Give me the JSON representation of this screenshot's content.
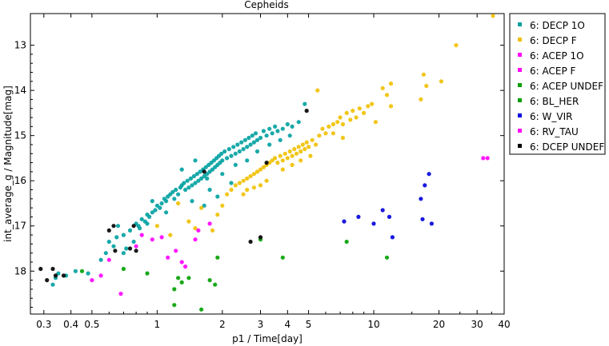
{
  "chart_data": {
    "type": "scatter",
    "title": "Cepheids",
    "xlabel": "p1 / Time[day]",
    "ylabel": "int_average_g / Magnitude[mag]",
    "x_scale": "log",
    "xlim": [
      0.26,
      40
    ],
    "ylim": [
      18.95,
      12.3
    ],
    "y_inverted": true,
    "x_ticks": [
      0.3,
      0.4,
      0.5,
      1,
      2,
      3,
      4,
      5,
      10,
      20,
      30,
      40
    ],
    "x_tick_labels": [
      "0.3",
      "0.4",
      "0.5",
      "1",
      "2",
      "3",
      "4",
      "5",
      "10",
      "20",
      "30",
      "40"
    ],
    "y_ticks": [
      13,
      14,
      15,
      16,
      17,
      18
    ],
    "y_tick_labels": [
      "13",
      "14",
      "15",
      "16",
      "17",
      "18"
    ],
    "grid": false,
    "legend_position": "right",
    "series": [
      {
        "name": "6: DECP 1O",
        "color": "#00a0a0",
        "points": [
          [
            0.33,
            18.3
          ],
          [
            0.34,
            18.15
          ],
          [
            0.35,
            18.05
          ],
          [
            0.38,
            18.1
          ],
          [
            0.42,
            18.0
          ],
          [
            0.48,
            18.05
          ],
          [
            0.55,
            17.75
          ],
          [
            0.58,
            17.6
          ],
          [
            0.6,
            17.35
          ],
          [
            0.63,
            17.45
          ],
          [
            0.65,
            17.25
          ],
          [
            0.66,
            17.0
          ],
          [
            0.7,
            17.2
          ],
          [
            0.72,
            17.5
          ],
          [
            0.75,
            17.1
          ],
          [
            0.78,
            17.35
          ],
          [
            0.8,
            16.95
          ],
          [
            0.83,
            17.05
          ],
          [
            0.85,
            16.85
          ],
          [
            0.88,
            16.9
          ],
          [
            0.9,
            16.75
          ],
          [
            0.92,
            16.8
          ],
          [
            0.95,
            16.7
          ],
          [
            0.98,
            16.65
          ],
          [
            1.0,
            16.55
          ],
          [
            1.03,
            16.6
          ],
          [
            1.05,
            16.5
          ],
          [
            1.08,
            16.4
          ],
          [
            1.1,
            16.45
          ],
          [
            1.12,
            16.35
          ],
          [
            1.15,
            16.3
          ],
          [
            1.18,
            16.25
          ],
          [
            1.2,
            16.4
          ],
          [
            1.22,
            16.2
          ],
          [
            1.25,
            16.3
          ],
          [
            1.28,
            16.15
          ],
          [
            1.3,
            16.1
          ],
          [
            1.33,
            16.05
          ],
          [
            1.35,
            16.2
          ],
          [
            1.38,
            16.0
          ],
          [
            1.4,
            16.15
          ],
          [
            1.43,
            15.95
          ],
          [
            1.45,
            16.1
          ],
          [
            1.48,
            15.9
          ],
          [
            1.5,
            16.05
          ],
          [
            1.53,
            15.85
          ],
          [
            1.55,
            16.0
          ],
          [
            1.58,
            15.8
          ],
          [
            1.6,
            15.95
          ],
          [
            1.63,
            15.75
          ],
          [
            1.65,
            15.9
          ],
          [
            1.68,
            15.7
          ],
          [
            1.7,
            15.85
          ],
          [
            1.73,
            15.65
          ],
          [
            1.75,
            15.8
          ],
          [
            1.78,
            15.6
          ],
          [
            1.8,
            15.75
          ],
          [
            1.83,
            15.55
          ],
          [
            1.85,
            15.7
          ],
          [
            1.88,
            15.5
          ],
          [
            1.9,
            15.65
          ],
          [
            1.93,
            15.45
          ],
          [
            1.95,
            15.6
          ],
          [
            1.98,
            15.4
          ],
          [
            2.0,
            15.55
          ],
          [
            2.05,
            15.35
          ],
          [
            2.1,
            15.5
          ],
          [
            2.15,
            15.3
          ],
          [
            2.2,
            15.45
          ],
          [
            2.25,
            15.25
          ],
          [
            2.3,
            15.4
          ],
          [
            2.35,
            15.2
          ],
          [
            2.4,
            15.35
          ],
          [
            2.45,
            15.15
          ],
          [
            2.5,
            15.3
          ],
          [
            2.55,
            15.1
          ],
          [
            2.6,
            15.25
          ],
          [
            2.65,
            15.05
          ],
          [
            2.7,
            15.2
          ],
          [
            2.75,
            15.0
          ],
          [
            2.8,
            15.15
          ],
          [
            2.85,
            14.95
          ],
          [
            2.9,
            15.1
          ],
          [
            3.0,
            15.05
          ],
          [
            3.1,
            14.9
          ],
          [
            3.2,
            15.0
          ],
          [
            3.3,
            14.85
          ],
          [
            3.4,
            14.95
          ],
          [
            3.5,
            14.8
          ],
          [
            3.6,
            14.9
          ],
          [
            3.8,
            14.85
          ],
          [
            4.0,
            14.75
          ],
          [
            4.2,
            14.8
          ],
          [
            4.5,
            14.7
          ],
          [
            4.8,
            14.3
          ],
          [
            1.3,
            15.75
          ],
          [
            1.5,
            15.55
          ],
          [
            1.7,
            15.95
          ],
          [
            2.0,
            15.85
          ],
          [
            2.3,
            15.65
          ],
          [
            1.65,
            16.55
          ],
          [
            1.9,
            16.35
          ],
          [
            2.2,
            16.05
          ],
          [
            0.95,
            16.45
          ],
          [
            1.1,
            16.7
          ],
          [
            0.82,
            17.0
          ],
          [
            0.7,
            17.6
          ],
          [
            0.9,
            16.95
          ],
          [
            1.45,
            16.45
          ],
          [
            1.75,
            16.2
          ],
          [
            2.6,
            15.55
          ],
          [
            2.9,
            15.35
          ],
          [
            3.3,
            15.2
          ],
          [
            3.7,
            15.1
          ],
          [
            4.1,
            15.0
          ]
        ]
      },
      {
        "name": "6: DECP F",
        "color": "#f0c000",
        "points": [
          [
            1.0,
            17.0
          ],
          [
            1.15,
            17.2
          ],
          [
            1.25,
            16.5
          ],
          [
            1.4,
            16.9
          ],
          [
            1.5,
            17.05
          ],
          [
            1.6,
            16.6
          ],
          [
            1.8,
            17.1
          ],
          [
            1.9,
            16.75
          ],
          [
            2.0,
            16.55
          ],
          [
            2.1,
            16.3
          ],
          [
            2.2,
            16.2
          ],
          [
            2.3,
            16.1
          ],
          [
            2.4,
            16.05
          ],
          [
            2.5,
            16.0
          ],
          [
            2.6,
            15.95
          ],
          [
            2.7,
            15.9
          ],
          [
            2.8,
            15.85
          ],
          [
            2.9,
            15.8
          ],
          [
            3.0,
            15.75
          ],
          [
            3.1,
            15.7
          ],
          [
            3.2,
            15.65
          ],
          [
            3.3,
            15.6
          ],
          [
            3.4,
            15.55
          ],
          [
            3.5,
            15.5
          ],
          [
            3.6,
            15.6
          ],
          [
            3.7,
            15.45
          ],
          [
            3.8,
            15.55
          ],
          [
            3.9,
            15.4
          ],
          [
            4.0,
            15.5
          ],
          [
            4.1,
            15.35
          ],
          [
            4.2,
            15.45
          ],
          [
            4.3,
            15.3
          ],
          [
            4.4,
            15.4
          ],
          [
            4.5,
            15.25
          ],
          [
            4.6,
            15.35
          ],
          [
            4.7,
            15.2
          ],
          [
            4.8,
            15.3
          ],
          [
            4.9,
            15.15
          ],
          [
            5.0,
            15.25
          ],
          [
            5.2,
            15.1
          ],
          [
            5.4,
            15.2
          ],
          [
            5.6,
            15.0
          ],
          [
            5.8,
            14.85
          ],
          [
            6.0,
            14.95
          ],
          [
            6.2,
            14.8
          ],
          [
            6.5,
            14.75
          ],
          [
            6.8,
            14.7
          ],
          [
            7.0,
            14.6
          ],
          [
            7.2,
            14.75
          ],
          [
            7.5,
            14.5
          ],
          [
            7.8,
            14.65
          ],
          [
            8.0,
            14.45
          ],
          [
            8.3,
            14.6
          ],
          [
            8.6,
            14.4
          ],
          [
            9.0,
            14.5
          ],
          [
            9.4,
            14.35
          ],
          [
            9.8,
            14.3
          ],
          [
            10.2,
            14.7
          ],
          [
            11.0,
            13.95
          ],
          [
            11.5,
            14.1
          ],
          [
            12.0,
            14.35
          ],
          [
            12.0,
            13.85
          ],
          [
            16.5,
            14.2
          ],
          [
            17.0,
            13.65
          ],
          [
            17.5,
            13.9
          ],
          [
            20.5,
            13.8
          ],
          [
            24.0,
            13.0
          ],
          [
            35.5,
            12.35
          ],
          [
            5.5,
            14.0
          ],
          [
            6.5,
            14.95
          ],
          [
            7.2,
            15.05
          ],
          [
            3.2,
            16.0
          ],
          [
            3.0,
            16.1
          ],
          [
            2.8,
            16.15
          ],
          [
            2.6,
            16.2
          ],
          [
            2.5,
            16.3
          ],
          [
            4.2,
            15.65
          ],
          [
            3.8,
            15.75
          ],
          [
            4.6,
            15.55
          ],
          [
            5.1,
            15.45
          ]
        ]
      },
      {
        "name": "6: ACEP 1O",
        "color": "#ff00ff",
        "points": []
      },
      {
        "name": "6: ACEP F",
        "color": "#ff00ff",
        "points": []
      },
      {
        "name": "6: ACEP UNDEF",
        "color": "#00a000",
        "points": [
          [
            0.45,
            18.0
          ],
          [
            0.7,
            17.95
          ],
          [
            0.9,
            18.05
          ],
          [
            1.2,
            18.4
          ],
          [
            1.2,
            18.75
          ],
          [
            1.25,
            18.15
          ],
          [
            1.3,
            18.25
          ],
          [
            1.4,
            18.15
          ],
          [
            1.6,
            18.85
          ],
          [
            1.75,
            18.2
          ],
          [
            1.85,
            18.3
          ],
          [
            1.9,
            17.7
          ],
          [
            3.0,
            17.3
          ],
          [
            3.8,
            17.7
          ],
          [
            7.5,
            17.35
          ],
          [
            11.5,
            17.7
          ]
        ]
      },
      {
        "name": "6: BL_HER",
        "color": "#00a000",
        "points": []
      },
      {
        "name": "6: W_VIR",
        "color": "#0000dd",
        "points": [
          [
            7.3,
            16.9
          ],
          [
            8.5,
            16.8
          ],
          [
            10.0,
            16.95
          ],
          [
            11.0,
            16.65
          ],
          [
            11.8,
            16.8
          ],
          [
            12.2,
            17.25
          ],
          [
            16.5,
            16.4
          ],
          [
            16.8,
            16.85
          ],
          [
            17.2,
            16.1
          ],
          [
            18.0,
            15.85
          ],
          [
            18.5,
            16.95
          ]
        ]
      },
      {
        "name": "6: RV_TAU",
        "color": "#ff00ff",
        "points": [
          [
            0.5,
            18.2
          ],
          [
            0.55,
            18.1
          ],
          [
            0.6,
            17.75
          ],
          [
            0.68,
            18.5
          ],
          [
            0.8,
            17.45
          ],
          [
            0.85,
            17.2
          ],
          [
            0.95,
            17.3
          ],
          [
            1.05,
            17.25
          ],
          [
            1.12,
            17.7
          ],
          [
            1.22,
            17.55
          ],
          [
            1.3,
            17.8
          ],
          [
            1.35,
            17.9
          ],
          [
            1.5,
            17.3
          ],
          [
            1.55,
            17.1
          ],
          [
            1.75,
            16.95
          ],
          [
            32.0,
            15.5
          ],
          [
            33.5,
            15.5
          ]
        ]
      },
      {
        "name": "6: DCEP UNDEF",
        "color": "#000000",
        "points": [
          [
            0.29,
            17.95
          ],
          [
            0.31,
            18.2
          ],
          [
            0.33,
            17.95
          ],
          [
            0.34,
            18.1
          ],
          [
            0.37,
            18.1
          ],
          [
            0.6,
            17.1
          ],
          [
            0.63,
            17.0
          ],
          [
            0.64,
            17.55
          ],
          [
            0.75,
            17.5
          ],
          [
            0.78,
            17.0
          ],
          [
            0.8,
            17.55
          ],
          [
            1.65,
            15.8
          ],
          [
            2.7,
            17.35
          ],
          [
            3.0,
            17.25
          ],
          [
            3.2,
            15.6
          ],
          [
            4.9,
            14.45
          ]
        ]
      }
    ]
  }
}
